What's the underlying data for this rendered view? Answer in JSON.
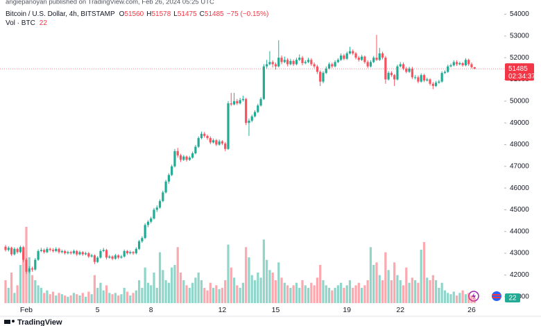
{
  "chart_data": {
    "type": "candlestick",
    "header": "angiepanoyan published on TradingView.com, Feb 26, 2024 05:25 UTC",
    "symbol": "Bitcoin / U.S. Dollar, 4h, BITSTAMP",
    "legend_fields": [
      "O",
      "H",
      "L",
      "C"
    ],
    "change": "−75 (−0.15%)",
    "volume_label": "Vol · BTC",
    "countdown": "02:34:37",
    "brand": "TradingView",
    "up_color": "#22ab94",
    "down_color": "#f7525f",
    "ylim": [
      40800,
      54400
    ],
    "yticks": [
      41000,
      42000,
      43000,
      44000,
      45000,
      46000,
      47000,
      48000,
      49000,
      50000,
      51000,
      52000,
      53000,
      54000
    ],
    "grid": false,
    "categories": [
      null,
      null,
      null,
      null,
      null,
      null,
      null,
      "Feb",
      null,
      null,
      null,
      null,
      null,
      null,
      null,
      null,
      null,
      null,
      null,
      null,
      null,
      null,
      null,
      null,
      null,
      null,
      null,
      null,
      null,
      null,
      null,
      "5",
      null,
      null,
      null,
      null,
      null,
      null,
      null,
      null,
      null,
      null,
      null,
      null,
      null,
      null,
      null,
      null,
      null,
      "8",
      null,
      null,
      null,
      null,
      null,
      null,
      null,
      null,
      null,
      null,
      null,
      null,
      null,
      null,
      null,
      null,
      null,
      null,
      null,
      null,
      null,
      null,
      null,
      "12",
      null,
      null,
      null,
      null,
      null,
      null,
      null,
      null,
      null,
      null,
      null,
      null,
      null,
      null,
      null,
      null,
      null,
      "15",
      null,
      null,
      null,
      null,
      null,
      null,
      null,
      null,
      null,
      null,
      null,
      null,
      null,
      null,
      null,
      null,
      null,
      null,
      null,
      null,
      null,
      null,
      null,
      "19",
      null,
      null,
      null,
      null,
      null,
      null,
      null,
      null,
      null,
      null,
      null,
      null,
      null,
      null,
      null,
      null,
      null,
      "22",
      null,
      null,
      null,
      null,
      null,
      null,
      null,
      null,
      null,
      null,
      null,
      null,
      null,
      null,
      null,
      null,
      null,
      null,
      null,
      null,
      null,
      null,
      null,
      "26",
      null
    ],
    "ohlc": [
      [
        43300,
        43380,
        43080,
        43150
      ],
      [
        43150,
        43320,
        43080,
        43250
      ],
      [
        43250,
        43300,
        42880,
        42950
      ],
      [
        42950,
        43270,
        42900,
        43200
      ],
      [
        43200,
        43260,
        42980,
        43050
      ],
      [
        43050,
        43350,
        43000,
        43280
      ],
      [
        43280,
        43340,
        42600,
        42700
      ],
      [
        42700,
        42780,
        42050,
        42150
      ],
      [
        42150,
        42400,
        42080,
        42300
      ],
      [
        42300,
        42380,
        42150,
        42250
      ],
      [
        42250,
        42780,
        42200,
        42700
      ],
      [
        42700,
        43180,
        42650,
        43100
      ],
      [
        43100,
        43250,
        43050,
        43150
      ],
      [
        43150,
        43220,
        42980,
        43050
      ],
      [
        43050,
        43280,
        43000,
        43200
      ],
      [
        43200,
        43260,
        43080,
        43150
      ],
      [
        43150,
        43230,
        43040,
        43100
      ],
      [
        43100,
        43280,
        43050,
        43200
      ],
      [
        43200,
        43260,
        42980,
        43050
      ],
      [
        43050,
        43170,
        42990,
        43100
      ],
      [
        43100,
        43160,
        42930,
        43000
      ],
      [
        43000,
        43120,
        42950,
        43050
      ],
      [
        43050,
        43110,
        42940,
        43000
      ],
      [
        43000,
        43170,
        42950,
        43100
      ],
      [
        43100,
        43150,
        42880,
        42950
      ],
      [
        42950,
        43120,
        42900,
        43050
      ],
      [
        43050,
        43100,
        42880,
        42950
      ],
      [
        42950,
        43070,
        42900,
        43000
      ],
      [
        43000,
        43060,
        42780,
        42850
      ],
      [
        42850,
        42970,
        42800,
        42900
      ],
      [
        42900,
        42950,
        42500,
        42600
      ],
      [
        42600,
        42870,
        42550,
        42800
      ],
      [
        42800,
        43180,
        42750,
        43100
      ],
      [
        43100,
        43250,
        43050,
        43150
      ],
      [
        43150,
        43200,
        42720,
        42800
      ],
      [
        42800,
        42920,
        42750,
        42850
      ],
      [
        42850,
        42900,
        42680,
        42750
      ],
      [
        42750,
        42970,
        42700,
        42900
      ],
      [
        42900,
        42950,
        42730,
        42800
      ],
      [
        42800,
        42920,
        42750,
        42850
      ],
      [
        42850,
        43170,
        42800,
        43100
      ],
      [
        43100,
        43150,
        42930,
        43000
      ],
      [
        43000,
        43120,
        42950,
        43050
      ],
      [
        43050,
        43100,
        42930,
        43000
      ],
      [
        43000,
        43270,
        42950,
        43200
      ],
      [
        43200,
        43620,
        43150,
        43550
      ],
      [
        43550,
        43780,
        43480,
        43700
      ],
      [
        43700,
        44380,
        43650,
        44300
      ],
      [
        44300,
        44520,
        44200,
        44450
      ],
      [
        44450,
        44680,
        44380,
        44600
      ],
      [
        44600,
        45080,
        44550,
        45000
      ],
      [
        45000,
        45200,
        44900,
        45100
      ],
      [
        45100,
        45480,
        45050,
        45400
      ],
      [
        45400,
        45880,
        45350,
        45800
      ],
      [
        45800,
        46380,
        45750,
        46300
      ],
      [
        46300,
        46680,
        46200,
        46600
      ],
      [
        46600,
        47080,
        46550,
        47000
      ],
      [
        47000,
        47800,
        46950,
        47700
      ],
      [
        47700,
        47850,
        47400,
        47500
      ],
      [
        47500,
        47580,
        47200,
        47300
      ],
      [
        47300,
        47520,
        47250,
        47450
      ],
      [
        47450,
        47500,
        47220,
        47300
      ],
      [
        47300,
        47480,
        47250,
        47400
      ],
      [
        47400,
        47680,
        47350,
        47600
      ],
      [
        47600,
        47980,
        47550,
        47900
      ],
      [
        47900,
        48380,
        47850,
        48300
      ],
      [
        48300,
        48600,
        48250,
        48500
      ],
      [
        48500,
        48580,
        48320,
        48400
      ],
      [
        48400,
        48460,
        48220,
        48300
      ],
      [
        48300,
        48380,
        48020,
        48100
      ],
      [
        48100,
        48280,
        48050,
        48200
      ],
      [
        48200,
        48260,
        47930,
        48000
      ],
      [
        48000,
        48230,
        47950,
        48150
      ],
      [
        48150,
        48200,
        47980,
        48050
      ],
      [
        48050,
        48120,
        47700,
        47800
      ],
      [
        47800,
        50000,
        47750,
        49900
      ],
      [
        49900,
        50380,
        49780,
        49850
      ],
      [
        49850,
        50380,
        49800,
        50000
      ],
      [
        50000,
        50100,
        49820,
        49900
      ],
      [
        49900,
        50150,
        49850,
        50050
      ],
      [
        50050,
        50250,
        49980,
        50100
      ],
      [
        50100,
        50150,
        48900,
        49000
      ],
      [
        49000,
        49200,
        48400,
        49100
      ],
      [
        49100,
        49380,
        49030,
        49300
      ],
      [
        49300,
        49580,
        49250,
        49500
      ],
      [
        49500,
        49880,
        49450,
        49800
      ],
      [
        49800,
        50180,
        49750,
        50100
      ],
      [
        50100,
        51700,
        50050,
        51600
      ],
      [
        51600,
        51900,
        51500,
        51700
      ],
      [
        51700,
        52300,
        51650,
        51800
      ],
      [
        51800,
        51880,
        51550,
        51700
      ],
      [
        51700,
        51780,
        51450,
        51600
      ],
      [
        51600,
        52800,
        51550,
        52000
      ],
      [
        52000,
        52100,
        51700,
        51800
      ],
      [
        51800,
        52050,
        51750,
        51900
      ],
      [
        51900,
        51980,
        51600,
        51700
      ],
      [
        51700,
        51950,
        51650,
        51850
      ],
      [
        51850,
        51920,
        51620,
        51700
      ],
      [
        51700,
        52000,
        51650,
        51900
      ],
      [
        51900,
        52150,
        51850,
        52000
      ],
      [
        52000,
        52080,
        51650,
        51750
      ],
      [
        51750,
        51880,
        51700,
        51800
      ],
      [
        51800,
        52000,
        51750,
        51900
      ],
      [
        51900,
        51980,
        51620,
        51700
      ],
      [
        51700,
        51780,
        51520,
        51600
      ],
      [
        51600,
        51680,
        51250,
        51350
      ],
      [
        51350,
        51420,
        50700,
        50900
      ],
      [
        50900,
        51380,
        50820,
        51300
      ],
      [
        51300,
        51600,
        51250,
        51500
      ],
      [
        51500,
        51780,
        51450,
        51700
      ],
      [
        51700,
        51770,
        51520,
        51600
      ],
      [
        51600,
        51880,
        51550,
        51800
      ],
      [
        51800,
        51980,
        51750,
        51900
      ],
      [
        51900,
        52200,
        51850,
        52100
      ],
      [
        52100,
        52180,
        51880,
        51950
      ],
      [
        51950,
        52280,
        51900,
        52200
      ],
      [
        52200,
        52500,
        52150,
        52300
      ],
      [
        52300,
        52380,
        52120,
        52200
      ],
      [
        52200,
        52260,
        51920,
        52000
      ],
      [
        52000,
        52080,
        51820,
        51900
      ],
      [
        51900,
        52130,
        51850,
        52050
      ],
      [
        52050,
        52100,
        51720,
        51800
      ],
      [
        51800,
        51880,
        51520,
        51600
      ],
      [
        51600,
        51880,
        51550,
        51800
      ],
      [
        51800,
        52080,
        51750,
        52000
      ],
      [
        52000,
        53050,
        51850,
        51900
      ],
      [
        51900,
        52450,
        51850,
        52200
      ],
      [
        52200,
        52280,
        51920,
        52000
      ],
      [
        52000,
        52080,
        50800,
        51000
      ],
      [
        51000,
        51380,
        50950,
        51300
      ],
      [
        51300,
        51380,
        51120,
        51200
      ],
      [
        51200,
        51250,
        50700,
        51000
      ],
      [
        51000,
        51680,
        50950,
        51600
      ],
      [
        51600,
        51800,
        51550,
        51700
      ],
      [
        51700,
        51780,
        51420,
        51500
      ],
      [
        51500,
        51580,
        51280,
        51350
      ],
      [
        51350,
        51580,
        51300,
        51500
      ],
      [
        51500,
        51580,
        51020,
        51100
      ],
      [
        51100,
        51200,
        51000,
        51100
      ],
      [
        51100,
        51180,
        50820,
        50900
      ],
      [
        50900,
        51280,
        50850,
        51200
      ],
      [
        51200,
        51260,
        50880,
        50950
      ],
      [
        50950,
        51080,
        50900,
        51000
      ],
      [
        51000,
        51050,
        50720,
        50800
      ],
      [
        50800,
        50880,
        50550,
        50700
      ],
      [
        50700,
        50930,
        50650,
        50850
      ],
      [
        50850,
        50980,
        50800,
        50900
      ],
      [
        50900,
        51380,
        50850,
        51300
      ],
      [
        51300,
        51420,
        51250,
        51350
      ],
      [
        51350,
        51680,
        51300,
        51600
      ],
      [
        51600,
        51730,
        51550,
        51650
      ],
      [
        51650,
        51880,
        51600,
        51800
      ],
      [
        51800,
        51880,
        51620,
        51700
      ],
      [
        51700,
        51820,
        51650,
        51750
      ],
      [
        51750,
        51800,
        51580,
        51650
      ],
      [
        51650,
        51980,
        51600,
        51900
      ],
      [
        51900,
        51960,
        51620,
        51700
      ],
      [
        51700,
        51780,
        51500,
        51560
      ],
      [
        51560,
        51578,
        51475,
        51485
      ]
    ],
    "volume": [
      90,
      60,
      120,
      40,
      70,
      150,
      200,
      300,
      180,
      110,
      90,
      70,
      60,
      40,
      50,
      35,
      45,
      30,
      40,
      35,
      30,
      25,
      30,
      40,
      35,
      30,
      40,
      25,
      45,
      35,
      110,
      60,
      80,
      50,
      70,
      40,
      35,
      40,
      30,
      35,
      60,
      45,
      30,
      40,
      50,
      90,
      60,
      140,
      80,
      70,
      120,
      60,
      200,
      130,
      90,
      80,
      140,
      150,
      220,
      120,
      90,
      70,
      60,
      80,
      100,
      120,
      90,
      60,
      50,
      80,
      60,
      70,
      55,
      60,
      90,
      230,
      140,
      100,
      70,
      60,
      80,
      220,
      180,
      110,
      90,
      120,
      100,
      250,
      170,
      130,
      120,
      90,
      160,
      100,
      80,
      70,
      60,
      70,
      80,
      60,
      90,
      70,
      60,
      80,
      70,
      100,
      150,
      90,
      70,
      60,
      50,
      60,
      70,
      80,
      60,
      70,
      90,
      60,
      70,
      80,
      60,
      70,
      90,
      220,
      150,
      160,
      110,
      90,
      200,
      130,
      90,
      160,
      110,
      90,
      70,
      140,
      80,
      100,
      90,
      80,
      210,
      240,
      100,
      90,
      110,
      90,
      60,
      80,
      50,
      40,
      35,
      45,
      30,
      40,
      50,
      35,
      40,
      30,
      22
    ]
  }
}
